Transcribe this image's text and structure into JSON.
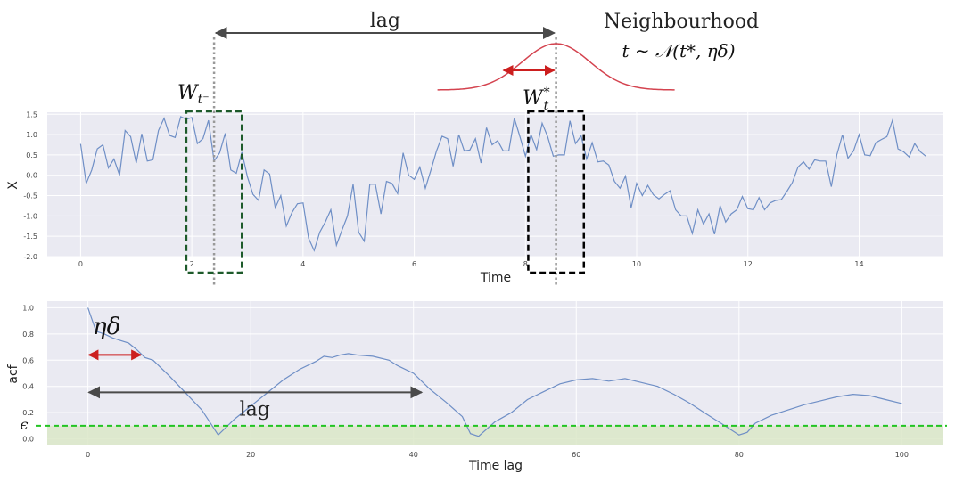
{
  "annotations": {
    "top_lag_label": "lag",
    "neighbourhood_title": "Neighbourhood",
    "neighbourhood_formula": "t ∼ 𝒩(t*, ηδ)",
    "window_prev_base": "W",
    "window_prev_sub": "t⁻",
    "window_star_base": "W",
    "window_star_sup": "*",
    "window_star_sub": "t",
    "eta_delta": "ηδ",
    "bottom_lag_label": "lag",
    "epsilon": "ϵ"
  },
  "colors": {
    "panel_bg": "#eaeaf2",
    "grid": "#ffffff",
    "series": "#6f8fc6",
    "red": "#cc1f1f",
    "gray_arrow": "#4a4a4a",
    "window_green": "#1d5a2a",
    "window_black": "#000000",
    "threshold_line": "#22c422",
    "threshold_fill": "#dbe8c8",
    "bell": "#d4434f"
  },
  "chart_data": [
    {
      "type": "line",
      "name": "time-series",
      "xlabel": "Time",
      "ylabel": "X",
      "xlim": [
        -0.6,
        15.5
      ],
      "ylim": [
        -2.0,
        1.55
      ],
      "xticks": [
        0,
        2,
        4,
        6,
        8,
        10,
        12,
        14
      ],
      "yticks": [
        1.5,
        1.0,
        0.5,
        0.0,
        -0.5,
        -1.0,
        -1.5,
        -2.0
      ],
      "ytick_labels": [
        "1.5",
        "1.0",
        "0.5",
        "0.0",
        "-0.5",
        "-1.0",
        "-1.5",
        "-2.0"
      ],
      "t_minus": 2.4,
      "t_star": 8.55,
      "window_prev": [
        1.9,
        2.9
      ],
      "window_star": [
        8.05,
        9.05
      ],
      "x_step": 0.1,
      "values": [
        0.77,
        -0.2,
        0.13,
        0.65,
        0.75,
        0.18,
        0.4,
        0.0,
        1.1,
        0.95,
        0.3,
        1.02,
        0.35,
        0.38,
        1.1,
        1.4,
        0.98,
        0.93,
        1.44,
        1.38,
        1.42,
        0.78,
        0.9,
        1.35,
        0.35,
        0.55,
        1.03,
        0.13,
        0.05,
        0.57,
        -0.04,
        -0.47,
        -0.62,
        0.13,
        0.03,
        -0.8,
        -0.5,
        -1.25,
        -0.92,
        -0.7,
        -0.68,
        -1.55,
        -1.85,
        -1.4,
        -1.15,
        -0.85,
        -1.72,
        -1.35,
        -1.0,
        -0.22,
        -1.4,
        -1.62,
        -0.22,
        -0.22,
        -0.95,
        -0.15,
        -0.2,
        -0.45,
        0.55,
        0.0,
        -0.1,
        0.2,
        -0.32,
        0.13,
        0.6,
        0.96,
        0.9,
        0.22,
        1.0,
        0.6,
        0.62,
        0.9,
        0.3,
        1.17,
        0.75,
        0.85,
        0.6,
        0.6,
        1.4,
        0.95,
        0.47,
        1.0,
        0.63,
        1.28,
        0.95,
        0.47,
        0.5,
        0.5,
        1.34,
        0.78,
        0.97,
        0.4,
        0.8,
        0.33,
        0.35,
        0.25,
        -0.15,
        -0.32,
        -0.02,
        -0.8,
        -0.2,
        -0.5,
        -0.25,
        -0.48,
        -0.58,
        -0.47,
        -0.38,
        -0.85,
        -1.0,
        -1.0,
        -1.43,
        -0.85,
        -1.2,
        -0.95,
        -1.45,
        -0.75,
        -1.15,
        -0.95,
        -0.85,
        -0.52,
        -0.82,
        -0.85,
        -0.55,
        -0.85,
        -0.68,
        -0.62,
        -0.6,
        -0.4,
        -0.18,
        0.2,
        0.33,
        0.15,
        0.38,
        0.35,
        0.35,
        -0.28,
        0.5,
        1.0,
        0.42,
        0.6,
        1.0,
        0.5,
        0.48,
        0.8,
        0.88,
        0.95,
        1.35,
        0.65,
        0.58,
        0.45,
        0.78,
        0.58,
        0.47
      ]
    },
    {
      "type": "line",
      "name": "autocorrelation",
      "xlabel": "Time lag",
      "ylabel": "acf",
      "xlim": [
        -5,
        105
      ],
      "ylim": [
        -0.05,
        1.05
      ],
      "xticks": [
        0,
        20,
        40,
        60,
        80,
        100
      ],
      "yticks": [
        1.0,
        0.8,
        0.6,
        0.4,
        0.2,
        0.0
      ],
      "ytick_labels": [
        "1.0",
        "0.8",
        "0.6",
        "0.4",
        "0.2",
        "0.0"
      ],
      "epsilon": 0.1,
      "eta_delta_span": [
        0,
        6.5
      ],
      "lag_span": [
        0,
        41
      ],
      "x": [
        0,
        1,
        2,
        3,
        4,
        5,
        6,
        7,
        8,
        10,
        12,
        14,
        16,
        18,
        20,
        22,
        24,
        26,
        28,
        29,
        30,
        31,
        32,
        33,
        35,
        37,
        38,
        40,
        42,
        44,
        46,
        47,
        48,
        50,
        52,
        54,
        56,
        58,
        60,
        62,
        64,
        66,
        68,
        70,
        72,
        74,
        76,
        78,
        80,
        81,
        82,
        84,
        86,
        88,
        90,
        92,
        94,
        96,
        98,
        100
      ],
      "values": [
        1.0,
        0.82,
        0.8,
        0.77,
        0.75,
        0.73,
        0.68,
        0.62,
        0.6,
        0.48,
        0.35,
        0.22,
        0.03,
        0.15,
        0.25,
        0.35,
        0.45,
        0.53,
        0.59,
        0.63,
        0.62,
        0.64,
        0.65,
        0.64,
        0.63,
        0.6,
        0.56,
        0.5,
        0.38,
        0.28,
        0.17,
        0.04,
        0.02,
        0.13,
        0.2,
        0.3,
        0.36,
        0.42,
        0.45,
        0.46,
        0.44,
        0.46,
        0.43,
        0.4,
        0.34,
        0.27,
        0.19,
        0.11,
        0.03,
        0.05,
        0.12,
        0.18,
        0.22,
        0.26,
        0.29,
        0.32,
        0.34,
        0.33,
        0.3,
        0.27
      ]
    }
  ]
}
